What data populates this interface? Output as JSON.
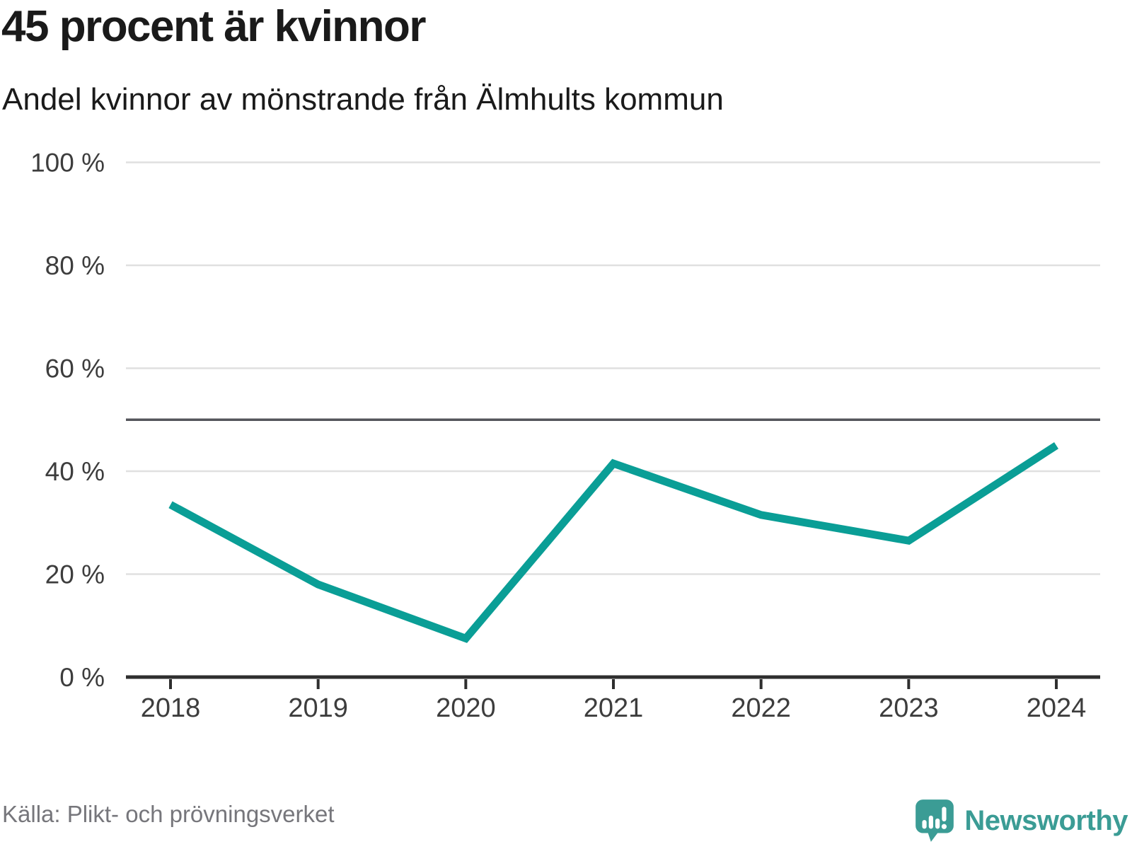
{
  "header": {
    "title": "45 procent är kvinnor",
    "subtitle": "Andel kvinnor av mönstrande från Älmhults kommun"
  },
  "chart_data": {
    "type": "line",
    "title": "45 procent är kvinnor",
    "subtitle": "Andel kvinnor av mönstrande från Älmhults kommun",
    "categories": [
      "2018",
      "2019",
      "2020",
      "2021",
      "2022",
      "2023",
      "2024"
    ],
    "values": [
      33.5,
      18,
      7.5,
      41.5,
      31.5,
      26.5,
      45
    ],
    "unit": "%",
    "xlabel": "",
    "ylabel": "",
    "ylim": [
      0,
      100
    ],
    "yticks": [
      0,
      20,
      40,
      60,
      80,
      100
    ],
    "ytick_labels": [
      "0 %",
      "20 %",
      "40 %",
      "60 %",
      "80 %",
      "100 %"
    ],
    "reference_line": {
      "value": 50,
      "color": "#54555b"
    },
    "grid": true,
    "legend": "none",
    "line_color": "#0a9e96",
    "grid_color": "#e0e0e0",
    "axis_color": "#2e2e2e",
    "tick_label_color": "#3d3d3d"
  },
  "footer": {
    "source": "Källa: Plikt- och prövningsverket",
    "brand": "Newsworthy",
    "brand_color": "#3b9c95"
  }
}
